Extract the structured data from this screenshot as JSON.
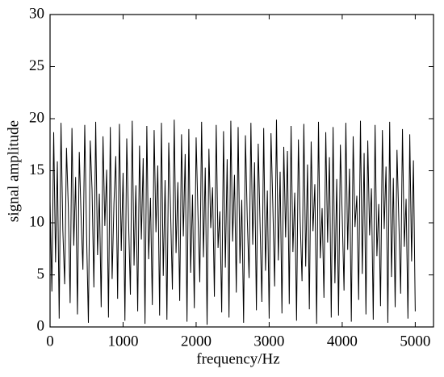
{
  "chart_data": {
    "type": "line",
    "xlabel": "frequency/Hz",
    "ylabel": "signal amplitude",
    "xlim": [
      0,
      5250
    ],
    "xticks": [
      0,
      1000,
      2000,
      3000,
      4000,
      5000
    ],
    "ylim": [
      0,
      30
    ],
    "yticks": [
      0,
      5,
      10,
      15,
      20,
      25,
      30
    ],
    "x": [
      0,
      25,
      50,
      75,
      100,
      125,
      150,
      175,
      200,
      225,
      250,
      275,
      300,
      325,
      350,
      375,
      400,
      425,
      450,
      475,
      500,
      525,
      550,
      575,
      600,
      625,
      650,
      675,
      700,
      725,
      750,
      775,
      800,
      825,
      850,
      875,
      900,
      925,
      950,
      975,
      1000,
      1025,
      1050,
      1075,
      1100,
      1125,
      1150,
      1175,
      1200,
      1225,
      1250,
      1275,
      1300,
      1325,
      1350,
      1375,
      1400,
      1425,
      1450,
      1475,
      1500,
      1525,
      1550,
      1575,
      1600,
      1625,
      1650,
      1675,
      1700,
      1725,
      1750,
      1775,
      1800,
      1825,
      1850,
      1875,
      1900,
      1925,
      1950,
      1975,
      2000,
      2025,
      2050,
      2075,
      2100,
      2125,
      2150,
      2175,
      2200,
      2225,
      2250,
      2275,
      2300,
      2325,
      2350,
      2375,
      2400,
      2425,
      2450,
      2475,
      2500,
      2525,
      2550,
      2575,
      2600,
      2625,
      2650,
      2675,
      2700,
      2725,
      2750,
      2775,
      2800,
      2825,
      2850,
      2875,
      2900,
      2925,
      2950,
      2975,
      3000,
      3025,
      3050,
      3075,
      3100,
      3125,
      3150,
      3175,
      3200,
      3225,
      3250,
      3275,
      3300,
      3325,
      3350,
      3375,
      3400,
      3425,
      3450,
      3475,
      3500,
      3525,
      3550,
      3575,
      3600,
      3625,
      3650,
      3675,
      3700,
      3725,
      3750,
      3775,
      3800,
      3825,
      3850,
      3875,
      3900,
      3925,
      3950,
      3975,
      4000,
      4025,
      4050,
      4075,
      4100,
      4125,
      4150,
      4175,
      4200,
      4225,
      4250,
      4275,
      4300,
      4325,
      4350,
      4375,
      4400,
      4425,
      4450,
      4475,
      4500,
      4525,
      4550,
      4575,
      4600,
      4625,
      4650,
      4675,
      4700,
      4725,
      4750,
      4775,
      4800,
      4825,
      4850,
      4875,
      4900,
      4925,
      4950,
      4975,
      5000
    ],
    "series": [
      {
        "color": "#000000",
        "values": [
          12.1,
          3.4,
          18.7,
          6.2,
          15.9,
          0.8,
          19.6,
          9.3,
          4.1,
          17.2,
          11.5,
          2.3,
          19.1,
          7.8,
          14.4,
          1.2,
          16.8,
          10.6,
          5.5,
          19.4,
          8.9,
          0.4,
          17.9,
          13.2,
          3.8,
          19.7,
          6.9,
          12.8,
          1.9,
          18.3,
          9.7,
          15.1,
          0.9,
          19.2,
          4.6,
          11.9,
          16.4,
          2.7,
          19.5,
          7.3,
          14.8,
          0.6,
          18.1,
          10.2,
          3.1,
          19.8,
          5.9,
          13.6,
          1.5,
          17.4,
          8.4,
          16.2,
          0.3,
          19.3,
          6.5,
          12.4,
          2.1,
          18.9,
          9.1,
          15.5,
          1.1,
          19.6,
          4.9,
          14.1,
          0.7,
          17.7,
          11.2,
          3.6,
          19.9,
          7.1,
          13.9,
          2.5,
          18.5,
          8.7,
          16.6,
          0.5,
          19.0,
          5.2,
          12.7,
          1.8,
          18.2,
          10.9,
          4.3,
          19.7,
          6.7,
          15.3,
          0.2,
          17.1,
          9.5,
          13.4,
          2.9,
          19.4,
          7.6,
          11.1,
          1.4,
          18.8,
          5.7,
          16.1,
          0.9,
          19.8,
          8.2,
          14.6,
          3.3,
          19.2,
          6.1,
          12.2,
          0.4,
          18.4,
          10.4,
          4.7,
          19.6,
          7.9,
          15.8,
          1.6,
          17.6,
          9.9,
          2.4,
          19.1,
          5.4,
          13.1,
          0.8,
          18.6,
          11.7,
          3.9,
          19.9,
          6.4,
          14.9,
          1.3,
          17.3,
          8.6,
          16.9,
          2.2,
          19.3,
          7.2,
          12.9,
          0.6,
          18.0,
          10.1,
          4.4,
          19.5,
          5.8,
          15.6,
          1.7,
          17.8,
          9.2,
          13.7,
          0.3,
          19.7,
          6.6,
          11.4,
          2.8,
          18.7,
          8.1,
          16.3,
          0.9,
          19.2,
          4.2,
          14.2,
          1.1,
          17.5,
          10.7,
          3.5,
          19.6,
          7.4,
          15.2,
          0.5,
          18.3,
          9.6,
          12.6,
          2.6,
          19.8,
          5.1,
          16.7,
          1.2,
          17.9,
          8.8,
          13.3,
          0.7,
          19.4,
          6.8,
          11.8,
          2.0,
          18.9,
          9.4,
          15.4,
          0.4,
          19.7,
          4.8,
          14.3,
          1.9,
          17.0,
          10.3,
          3.2,
          19.0,
          7.7,
          12.3,
          0.8,
          18.5,
          6.3,
          16.0,
          1.5
        ]
      }
    ]
  }
}
